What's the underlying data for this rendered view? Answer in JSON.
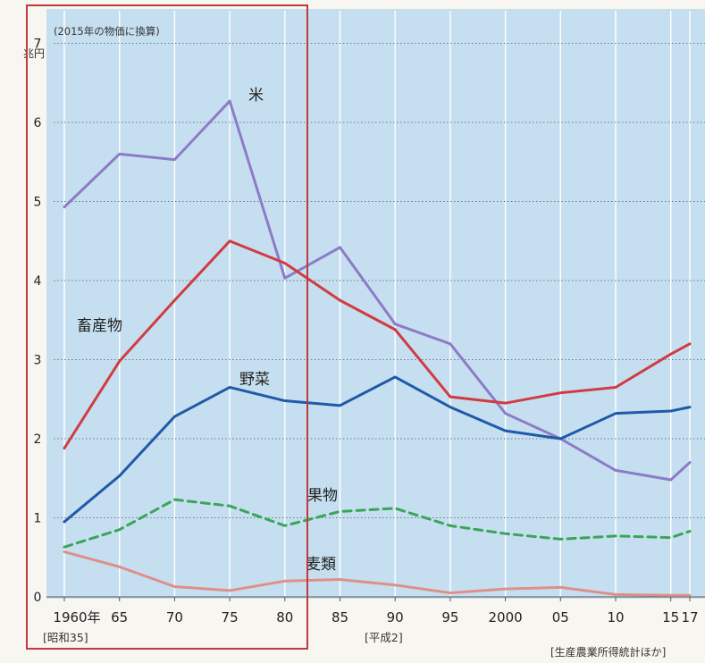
{
  "chart_data": {
    "type": "line",
    "subtitle": "(2015年の物価に換算)",
    "unit": "兆円",
    "source": "[生産農業所得統計ほか]",
    "x_labels": [
      "1960年",
      "65",
      "70",
      "75",
      "80",
      "85",
      "90",
      "95",
      "2000",
      "05",
      "10",
      "15",
      "17"
    ],
    "x": [
      1960,
      1965,
      1970,
      1975,
      1980,
      1985,
      1990,
      1995,
      2000,
      2005,
      2010,
      2015,
      2017
    ],
    "era_labels": [
      "[昭和35]",
      "[平成2]"
    ],
    "ylim": [
      0,
      7
    ],
    "yticks": [
      "0",
      "1",
      "2",
      "3",
      "4",
      "5",
      "6",
      "7"
    ],
    "grid": true,
    "series": [
      {
        "name": "米",
        "color": "#8c7cc8",
        "dashed": false,
        "values": [
          4.93,
          5.6,
          5.53,
          6.27,
          4.03,
          4.42,
          3.45,
          3.2,
          2.32,
          2.0,
          1.6,
          1.48,
          1.7
        ]
      },
      {
        "name": "畜産物",
        "color": "#d03c42",
        "dashed": false,
        "values": [
          1.88,
          2.98,
          3.75,
          4.5,
          4.22,
          3.75,
          3.38,
          2.53,
          2.45,
          2.58,
          2.65,
          3.07,
          3.2
        ]
      },
      {
        "name": "野菜",
        "color": "#1f5aa8",
        "dashed": false,
        "values": [
          0.95,
          1.53,
          2.28,
          2.65,
          2.48,
          2.42,
          2.78,
          2.4,
          2.1,
          2.0,
          2.32,
          2.35,
          2.4
        ]
      },
      {
        "name": "果物",
        "color": "#3aa55a",
        "dashed": true,
        "values": [
          0.63,
          0.85,
          1.23,
          1.15,
          0.9,
          1.08,
          1.12,
          0.9,
          0.8,
          0.73,
          0.77,
          0.75,
          0.83
        ]
      },
      {
        "name": "麦類",
        "color": "#de9088",
        "dashed": false,
        "values": [
          0.57,
          0.38,
          0.13,
          0.08,
          0.2,
          0.22,
          0.15,
          0.05,
          0.1,
          0.12,
          0.03,
          0.02,
          0.02
        ]
      }
    ]
  }
}
